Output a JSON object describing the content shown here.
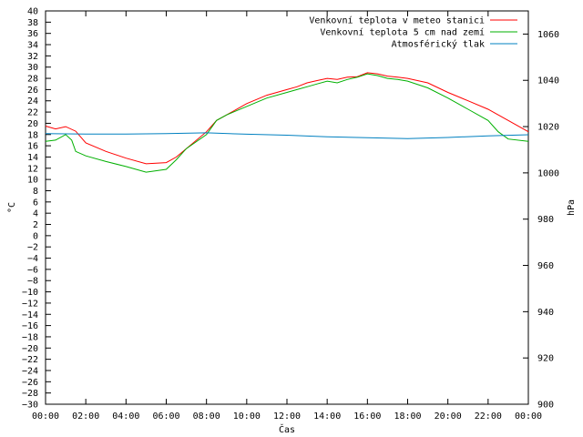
{
  "chart_data": {
    "type": "line",
    "xlabel": "Čas",
    "ylabel_left": "°C",
    "ylabel_right": "hPa",
    "ylim_left": [
      -30,
      40
    ],
    "ylim_right": [
      900,
      1070
    ],
    "x_range_hours": [
      0,
      24
    ],
    "x_ticks": [
      "00:00",
      "02:00",
      "04:00",
      "06:00",
      "08:00",
      "10:00",
      "12:00",
      "14:00",
      "16:00",
      "18:00",
      "20:00",
      "22:00",
      "00:00"
    ],
    "y_left_ticks": [
      40,
      38,
      36,
      34,
      32,
      30,
      28,
      26,
      24,
      22,
      20,
      18,
      16,
      14,
      12,
      10,
      8,
      6,
      4,
      2,
      0,
      -2,
      -4,
      -6,
      -8,
      -10,
      -12,
      -14,
      -16,
      -18,
      -20,
      -22,
      -24,
      -26,
      -28,
      -30
    ],
    "y_right_ticks": [
      1060,
      1040,
      1020,
      1000,
      980,
      960,
      940,
      920,
      900
    ],
    "grid": false,
    "legend_position": "top-right",
    "series": [
      {
        "name": "Venkovní teplota v meteo stanici",
        "axis": "left",
        "color": "#ff0000",
        "x": [
          0,
          0.5,
          1,
          1.5,
          2,
          3,
          4,
          5,
          6,
          6.5,
          7,
          8,
          8.5,
          9,
          10,
          11,
          12,
          12.5,
          13,
          13.5,
          14,
          14.5,
          15,
          15.5,
          16,
          16.5,
          17,
          17.5,
          18,
          19,
          20,
          21,
          22,
          23,
          24
        ],
        "values": [
          19.5,
          19,
          19.4,
          18.6,
          16.5,
          15,
          13.8,
          12.8,
          13,
          14,
          15.5,
          18.5,
          20.5,
          21.5,
          23.5,
          25,
          26,
          26.5,
          27.2,
          27.6,
          28,
          27.8,
          28.2,
          28.3,
          29,
          28.8,
          28.4,
          28.2,
          28,
          27.2,
          25.5,
          24,
          22.5,
          20.5,
          18.5
        ]
      },
      {
        "name": "Venkovní teplota 5 cm nad zemí",
        "axis": "left",
        "color": "#00b000",
        "x": [
          0,
          0.5,
          1,
          1.3,
          1.5,
          2,
          3,
          4,
          5,
          6,
          6.5,
          7,
          8,
          8.5,
          9,
          10,
          11,
          12,
          12.5,
          13,
          13.5,
          14,
          14.5,
          15,
          15.5,
          16,
          16.5,
          17,
          17.5,
          18,
          19,
          20,
          21,
          22,
          22.5,
          23,
          24
        ],
        "values": [
          16.8,
          17,
          18,
          17,
          15,
          14.2,
          13.2,
          12.3,
          11.3,
          11.8,
          13.5,
          15.5,
          18,
          20.5,
          21.5,
          23,
          24.5,
          25.5,
          26,
          26.5,
          27,
          27.5,
          27.2,
          27.8,
          28.2,
          28.8,
          28.5,
          28,
          27.8,
          27.5,
          26.3,
          24.5,
          22.5,
          20.5,
          18.5,
          17.2,
          16.8
        ]
      },
      {
        "name": "Atmosférický tlak",
        "axis": "right",
        "color": "#0080c0",
        "x": [
          0,
          2,
          4,
          6,
          8,
          10,
          12,
          14,
          16,
          18,
          20,
          22,
          24
        ],
        "values": [
          1017,
          1016.8,
          1016.8,
          1017,
          1017.3,
          1016.7,
          1016.3,
          1015.6,
          1015.2,
          1014.8,
          1015.3,
          1016,
          1016.5
        ]
      }
    ]
  }
}
